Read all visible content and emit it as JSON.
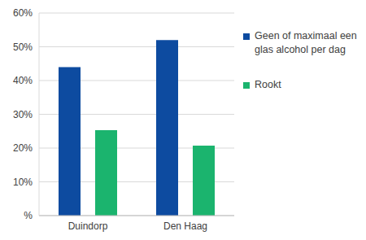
{
  "chart_data": {
    "type": "bar",
    "categories": [
      "Duindorp",
      "Den Haag"
    ],
    "series": [
      {
        "name": "Geen of maximaal een glas alcohol per dag",
        "color": "#0d4ba0",
        "values": [
          44,
          52
        ]
      },
      {
        "name": "Rookt",
        "color": "#1bb46e",
        "values": [
          25.3,
          20.7
        ]
      }
    ],
    "ylim": [
      0,
      60
    ],
    "yticks": [
      {
        "value": 0,
        "label": "%"
      },
      {
        "value": 10,
        "label": "10%"
      },
      {
        "value": 20,
        "label": "20%"
      },
      {
        "value": 30,
        "label": "30%"
      },
      {
        "value": 40,
        "label": "40%"
      },
      {
        "value": 50,
        "label": "50%"
      },
      {
        "value": 60,
        "label": "60%"
      }
    ],
    "grid": true,
    "legend": "right"
  }
}
